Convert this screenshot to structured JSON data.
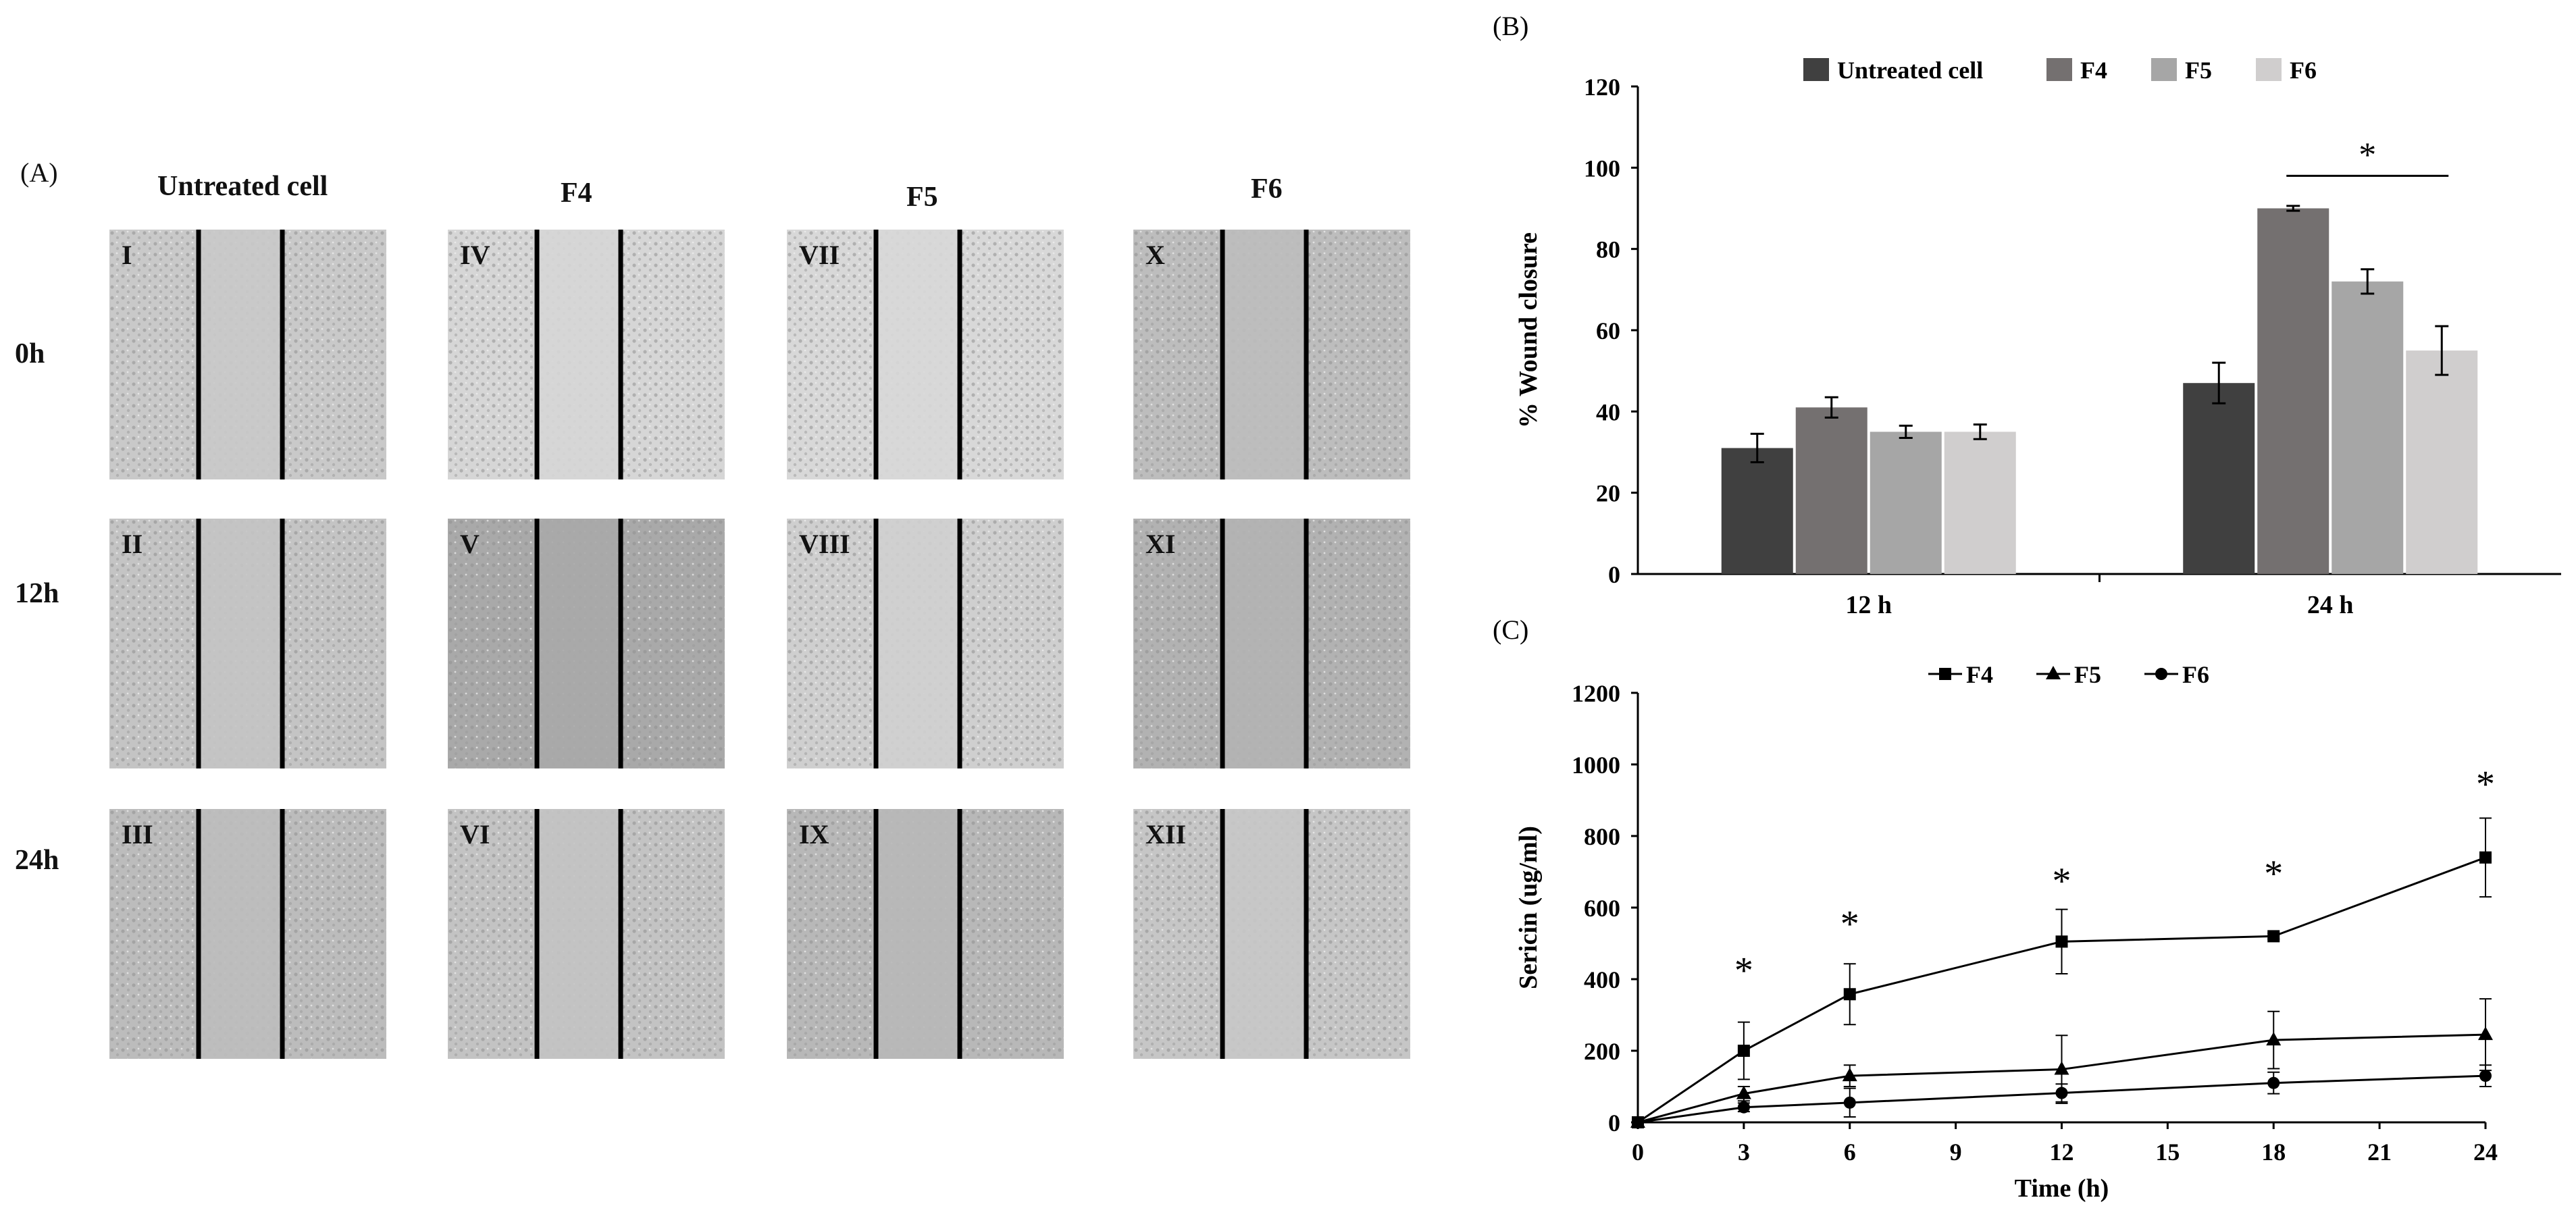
{
  "panel_a": {
    "letter": "(A)",
    "columns": [
      "Untreated cell",
      "F4",
      "F5",
      "F6"
    ],
    "rows": [
      "0h",
      "12h",
      "24h"
    ],
    "images": [
      {
        "label": "I",
        "col": 0,
        "row": 0,
        "tone": "#c9c9c9"
      },
      {
        "label": "II",
        "col": 0,
        "row": 1,
        "tone": "#c4c4c4"
      },
      {
        "label": "III",
        "col": 0,
        "row": 2,
        "tone": "#bcbcbc"
      },
      {
        "label": "IV",
        "col": 1,
        "row": 0,
        "tone": "#d6d6d6"
      },
      {
        "label": "V",
        "col": 1,
        "row": 1,
        "tone": "#a9a9a9"
      },
      {
        "label": "VI",
        "col": 1,
        "row": 2,
        "tone": "#c3c3c3"
      },
      {
        "label": "VII",
        "col": 2,
        "row": 0,
        "tone": "#d8d8d8"
      },
      {
        "label": "VIII",
        "col": 2,
        "row": 1,
        "tone": "#cfcfcf"
      },
      {
        "label": "IX",
        "col": 2,
        "row": 2,
        "tone": "#b8b8b8"
      },
      {
        "label": "X",
        "col": 3,
        "row": 0,
        "tone": "#bdbdbd"
      },
      {
        "label": "XI",
        "col": 3,
        "row": 1,
        "tone": "#b2b2b2"
      },
      {
        "label": "XII",
        "col": 3,
        "row": 2,
        "tone": "#c6c6c6"
      }
    ]
  },
  "chart_data": [
    {
      "panel": "(B)",
      "type": "bar",
      "title": "",
      "xlabel": "",
      "ylabel": "% Wound closure",
      "categories": [
        "12 h",
        "24 h"
      ],
      "ylim": [
        0,
        120
      ],
      "yticks": [
        0,
        20,
        40,
        60,
        80,
        100,
        120
      ],
      "series": [
        {
          "name": "Untreated cell",
          "values": [
            31,
            47
          ],
          "errors": [
            3.5,
            5
          ],
          "color": "#404040"
        },
        {
          "name": "F4",
          "values": [
            41,
            90
          ],
          "errors": [
            2.5,
            0.6
          ],
          "color": "#747070"
        },
        {
          "name": "F5",
          "values": [
            35,
            72
          ],
          "errors": [
            1.5,
            3
          ],
          "color": "#a6a6a6"
        },
        {
          "name": "F6",
          "values": [
            35,
            55
          ],
          "errors": [
            1.8,
            6
          ],
          "color": "#d0cece"
        }
      ],
      "legend_position": "top",
      "annotation": {
        "text": "*",
        "category": "24 h",
        "from_series": "F4",
        "to_series": "F6",
        "y": 98
      }
    },
    {
      "panel": "(C)",
      "type": "line",
      "title": "",
      "xlabel": "Time (h)",
      "ylabel": "Sericin (ug/ml)",
      "xlim": [
        0,
        24
      ],
      "xticks": [
        0,
        3,
        6,
        9,
        12,
        15,
        18,
        21,
        24
      ],
      "ylim": [
        0,
        1200
      ],
      "yticks": [
        0,
        200,
        400,
        600,
        800,
        1000,
        1200
      ],
      "x": [
        0,
        3,
        6,
        12,
        18,
        24
      ],
      "series": [
        {
          "name": "F4",
          "marker": "square",
          "values": [
            0,
            200,
            358,
            505,
            520,
            740
          ],
          "errors": [
            0,
            80,
            85,
            90,
            8,
            110
          ]
        },
        {
          "name": "F5",
          "marker": "triangle",
          "values": [
            0,
            80,
            130,
            148,
            230,
            245
          ],
          "errors": [
            0,
            20,
            30,
            95,
            80,
            100
          ]
        },
        {
          "name": "F6",
          "marker": "circle",
          "values": [
            0,
            42,
            55,
            82,
            110,
            130
          ],
          "errors": [
            0,
            12,
            40,
            25,
            30,
            30
          ]
        }
      ],
      "legend_position": "top",
      "annotations": [
        {
          "text": "*",
          "x": 3,
          "y": 390
        },
        {
          "text": "*",
          "x": 6,
          "y": 520
        },
        {
          "text": "*",
          "x": 12,
          "y": 640
        },
        {
          "text": "*",
          "x": 18,
          "y": 660
        },
        {
          "text": "*",
          "x": 24,
          "y": 910
        }
      ]
    }
  ]
}
